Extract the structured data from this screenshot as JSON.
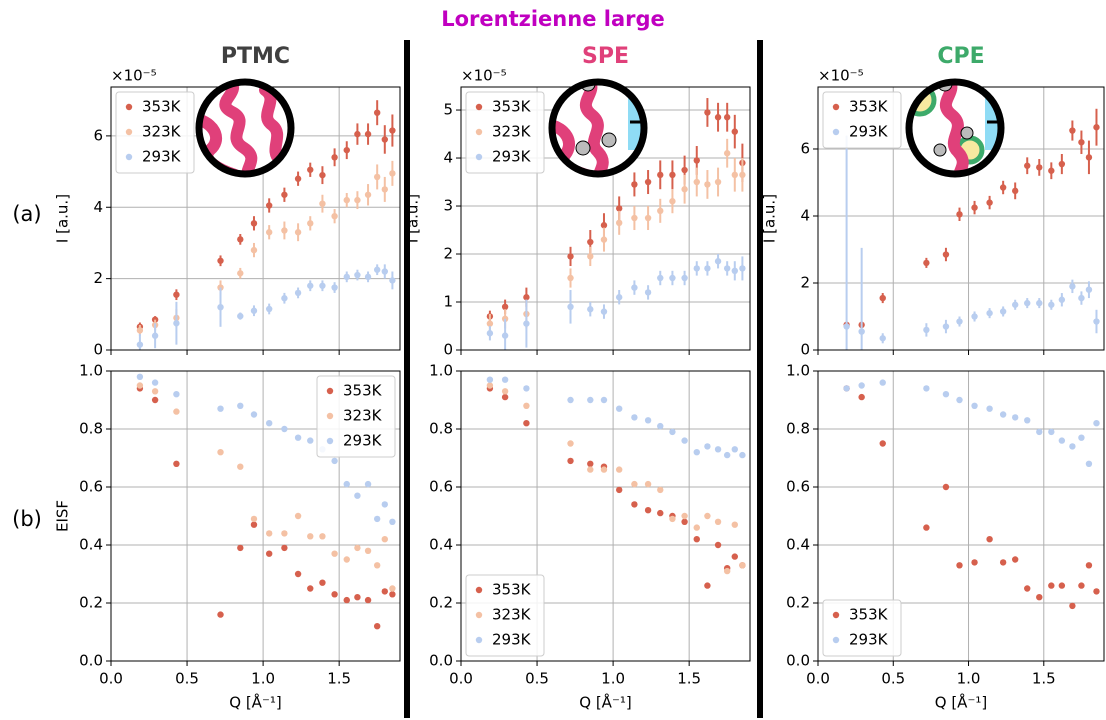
{
  "suptitle": "Lorentzienne large",
  "row_labels": [
    "(a)",
    "(b)"
  ],
  "chart_data": [
    {
      "type": "errorbar",
      "title": "PTMC",
      "title_color": "#404040",
      "y_label": "I [a.u.]",
      "offset_label": "×10⁻⁵",
      "x": [
        0.19,
        0.29,
        0.43,
        0.72,
        0.85,
        0.94,
        1.04,
        1.14,
        1.23,
        1.31,
        1.39,
        1.47,
        1.55,
        1.62,
        1.69,
        1.75,
        1.8,
        1.85
      ],
      "series": [
        {
          "name": "353K",
          "color": "#d6604d",
          "values": [
            0.65,
            0.85,
            1.55,
            2.5,
            3.1,
            3.55,
            4.05,
            4.35,
            4.8,
            5.05,
            4.9,
            5.4,
            5.6,
            6.05,
            6.05,
            6.65,
            5.9,
            6.15
          ],
          "errors": [
            0.12,
            0.1,
            0.15,
            0.15,
            0.15,
            0.2,
            0.2,
            0.2,
            0.2,
            0.2,
            0.25,
            0.25,
            0.25,
            0.3,
            0.3,
            0.35,
            0.4,
            0.45
          ]
        },
        {
          "name": "323K",
          "color": "#f4c1a4",
          "values": [
            0.55,
            0.7,
            0.9,
            1.75,
            2.15,
            2.8,
            3.3,
            3.35,
            3.3,
            3.55,
            4.1,
            3.75,
            4.2,
            4.2,
            4.35,
            4.85,
            4.5,
            4.95
          ],
          "errors": [
            0.15,
            0.15,
            0.25,
            0.2,
            0.15,
            0.2,
            0.2,
            0.25,
            0.25,
            0.2,
            0.25,
            0.2,
            0.2,
            0.25,
            0.3,
            0.35,
            0.35,
            0.35
          ]
        },
        {
          "name": "293K",
          "color": "#b8cdef",
          "values": [
            0.15,
            0.4,
            0.75,
            1.2,
            0.95,
            1.1,
            1.15,
            1.45,
            1.6,
            1.8,
            1.8,
            1.75,
            2.05,
            2.1,
            2.05,
            2.25,
            2.2,
            1.95
          ],
          "errors": [
            0.3,
            0.35,
            0.6,
            0.55,
            0.1,
            0.15,
            0.15,
            0.15,
            0.15,
            0.15,
            0.15,
            0.15,
            0.15,
            0.15,
            0.15,
            0.15,
            0.2,
            0.25
          ]
        }
      ],
      "xlim": [
        0,
        1.9
      ],
      "xticks": [
        {
          "value": 0,
          "label": "0.0"
        },
        0.5,
        {
          "value": 1,
          "label": "1.0"
        },
        1.5
      ],
      "ylim": [
        0,
        7.37
      ],
      "yticks": [
        0,
        2,
        4,
        6
      ],
      "grid": true,
      "legend": "upper left"
    },
    {
      "type": "scatter",
      "y_label": "EISF",
      "x_label": "Q [Å⁻¹]",
      "x": [
        0.19,
        0.29,
        0.43,
        0.72,
        0.85,
        0.94,
        1.04,
        1.14,
        1.23,
        1.31,
        1.39,
        1.47,
        1.55,
        1.62,
        1.69,
        1.75,
        1.8,
        1.85
      ],
      "series": [
        {
          "name": "353K",
          "color": "#d6604d",
          "values": [
            0.94,
            0.9,
            0.68,
            0.16,
            0.39,
            0.47,
            0.37,
            0.39,
            0.3,
            0.25,
            0.27,
            0.23,
            0.21,
            0.22,
            0.21,
            0.12,
            0.24,
            0.23
          ]
        },
        {
          "name": "323K",
          "color": "#f4c1a4",
          "values": [
            0.95,
            0.93,
            0.86,
            0.72,
            0.67,
            0.49,
            0.44,
            0.44,
            0.5,
            0.43,
            0.43,
            0.37,
            0.35,
            0.39,
            0.38,
            0.33,
            0.42,
            0.25
          ]
        },
        {
          "name": "293K",
          "color": "#b8cdef",
          "values": [
            0.98,
            0.96,
            0.92,
            0.87,
            0.88,
            0.85,
            0.82,
            0.8,
            0.77,
            0.76,
            0.73,
            0.69,
            0.61,
            0.57,
            0.61,
            0.49,
            0.54,
            0.48
          ]
        }
      ],
      "xlim": [
        0,
        1.9
      ],
      "xticks": [
        {
          "value": 0,
          "label": "0.0"
        },
        0.5,
        {
          "value": 1,
          "label": "1.0"
        },
        1.5
      ],
      "ylim": [
        0,
        1
      ],
      "yticks": [
        {
          "value": 0,
          "label": "0.0"
        },
        0.2,
        0.4,
        0.6,
        0.8,
        {
          "value": 1,
          "label": "1.0"
        }
      ],
      "grid": true,
      "legend": "upper right"
    },
    {
      "type": "errorbar",
      "title": "SPE",
      "title_color": "#e0407a",
      "y_label": "I [a.u.]",
      "offset_label": "×10⁻⁵",
      "x": [
        0.19,
        0.29,
        0.43,
        0.72,
        0.85,
        0.94,
        1.04,
        1.14,
        1.23,
        1.31,
        1.39,
        1.47,
        1.55,
        1.62,
        1.69,
        1.75,
        1.8,
        1.85
      ],
      "series": [
        {
          "name": "353K",
          "color": "#d6604d",
          "values": [
            0.7,
            0.9,
            1.1,
            1.95,
            2.25,
            2.6,
            2.95,
            3.45,
            3.5,
            3.65,
            3.65,
            3.75,
            3.95,
            4.95,
            4.85,
            4.85,
            4.55,
            3.9
          ],
          "errors": [
            0.12,
            0.15,
            0.2,
            0.2,
            0.25,
            0.25,
            0.25,
            0.25,
            0.25,
            0.3,
            0.3,
            0.3,
            0.3,
            0.3,
            0.3,
            0.3,
            0.35,
            0.4
          ]
        },
        {
          "name": "323K",
          "color": "#f4c1a4",
          "values": [
            0.55,
            0.65,
            0.75,
            1.5,
            1.95,
            2.3,
            2.65,
            2.75,
            2.75,
            2.9,
            3.1,
            3.35,
            3.5,
            3.45,
            3.5,
            4.1,
            3.65,
            3.65
          ],
          "errors": [
            0.2,
            0.2,
            0.3,
            0.2,
            0.2,
            0.25,
            0.25,
            0.25,
            0.25,
            0.25,
            0.25,
            0.3,
            0.3,
            0.3,
            0.3,
            0.3,
            0.35,
            0.35
          ]
        },
        {
          "name": "293K",
          "color": "#b8cdef",
          "values": [
            0.35,
            0.3,
            0.55,
            0.9,
            0.85,
            0.8,
            1.1,
            1.3,
            1.2,
            1.5,
            1.5,
            1.5,
            1.7,
            1.7,
            1.85,
            1.7,
            1.65,
            1.7
          ],
          "errors": [
            0.15,
            0.35,
            0.5,
            0.35,
            0.15,
            0.15,
            0.15,
            0.15,
            0.15,
            0.15,
            0.15,
            0.15,
            0.15,
            0.15,
            0.15,
            0.15,
            0.2,
            0.25
          ]
        }
      ],
      "xlim": [
        0,
        1.9
      ],
      "xticks": [
        {
          "value": 0,
          "label": "0.0"
        },
        0.5,
        {
          "value": 1,
          "label": "1.0"
        },
        1.5
      ],
      "ylim": [
        0,
        5.48
      ],
      "yticks": [
        0,
        1,
        2,
        3,
        4,
        5
      ],
      "grid": true,
      "legend": "upper left"
    },
    {
      "type": "scatter",
      "x_label": "Q [Å⁻¹]",
      "x": [
        0.19,
        0.29,
        0.43,
        0.72,
        0.85,
        0.94,
        1.04,
        1.14,
        1.23,
        1.31,
        1.39,
        1.47,
        1.55,
        1.62,
        1.69,
        1.75,
        1.8,
        1.85
      ],
      "series": [
        {
          "name": "353K",
          "color": "#d6604d",
          "values": [
            0.94,
            0.91,
            0.82,
            0.69,
            0.68,
            0.67,
            0.59,
            0.54,
            0.52,
            0.51,
            0.5,
            0.48,
            0.42,
            0.26,
            0.4,
            0.32,
            0.36,
            0.33
          ]
        },
        {
          "name": "323K",
          "color": "#f4c1a4",
          "values": [
            0.95,
            0.93,
            0.88,
            0.75,
            0.66,
            0.66,
            0.66,
            0.61,
            0.61,
            0.59,
            0.49,
            0.5,
            0.46,
            0.5,
            0.48,
            0.31,
            0.47,
            0.33
          ]
        },
        {
          "name": "293K",
          "color": "#b8cdef",
          "values": [
            0.97,
            0.97,
            0.94,
            0.9,
            0.9,
            0.9,
            0.87,
            0.84,
            0.83,
            0.81,
            0.79,
            0.76,
            0.72,
            0.74,
            0.73,
            0.71,
            0.73,
            0.71
          ]
        }
      ],
      "xlim": [
        0,
        1.9
      ],
      "xticks": [
        {
          "value": 0,
          "label": "0.0"
        },
        0.5,
        {
          "value": 1,
          "label": "1.0"
        },
        1.5
      ],
      "ylim": [
        0,
        1
      ],
      "yticks": [
        {
          "value": 0,
          "label": "0.0"
        },
        0.2,
        0.4,
        0.6,
        0.8,
        {
          "value": 1,
          "label": "1.0"
        }
      ],
      "grid": true,
      "legend": "lower left"
    },
    {
      "type": "errorbar",
      "title": "CPE",
      "title_color": "#3daa6a",
      "y_label": "I [a.u.]",
      "offset_label": "×10⁻⁵",
      "x": [
        0.19,
        0.29,
        0.43,
        0.72,
        0.85,
        0.94,
        1.04,
        1.14,
        1.23,
        1.31,
        1.39,
        1.47,
        1.55,
        1.62,
        1.69,
        1.75,
        1.8,
        1.85
      ],
      "series": [
        {
          "name": "353K",
          "color": "#d6604d",
          "values": [
            0.75,
            0.75,
            1.55,
            2.6,
            2.85,
            4.05,
            4.25,
            4.4,
            4.85,
            4.75,
            5.5,
            5.45,
            5.35,
            5.55,
            6.55,
            6.2,
            5.75,
            6.65
          ],
          "errors": [
            0.1,
            0.1,
            0.15,
            0.15,
            0.2,
            0.2,
            0.2,
            0.2,
            0.2,
            0.25,
            0.25,
            0.25,
            0.25,
            0.3,
            0.3,
            0.35,
            0.5,
            0.55
          ]
        },
        {
          "name": "293K",
          "color": "#b8cdef",
          "values": [
            0.7,
            0.55,
            0.35,
            0.6,
            0.7,
            0.85,
            1.0,
            1.1,
            1.15,
            1.35,
            1.4,
            1.4,
            1.35,
            1.5,
            1.9,
            1.55,
            1.8,
            0.85
          ],
          "errors": [
            5.7,
            2.5,
            0.15,
            0.2,
            0.2,
            0.15,
            0.15,
            0.15,
            0.15,
            0.15,
            0.15,
            0.15,
            0.15,
            0.2,
            0.2,
            0.2,
            0.25,
            0.35
          ]
        }
      ],
      "xlim": [
        0,
        1.9
      ],
      "xticks": [
        {
          "value": 0,
          "label": "0.0"
        },
        0.5,
        {
          "value": 1,
          "label": "1.0"
        },
        1.5
      ],
      "ylim": [
        0,
        7.85
      ],
      "yticks": [
        0,
        2,
        4,
        6
      ],
      "grid": true,
      "legend": "upper left"
    },
    {
      "type": "scatter",
      "x_label": "Q [Å⁻¹]",
      "x": [
        0.19,
        0.29,
        0.43,
        0.72,
        0.85,
        0.94,
        1.04,
        1.14,
        1.23,
        1.31,
        1.39,
        1.47,
        1.55,
        1.62,
        1.69,
        1.75,
        1.8,
        1.85
      ],
      "series": [
        {
          "name": "353K",
          "color": "#d6604d",
          "values": [
            0.94,
            0.91,
            0.75,
            0.46,
            0.6,
            0.33,
            0.34,
            0.42,
            0.34,
            0.35,
            0.25,
            0.22,
            0.26,
            0.26,
            0.19,
            0.26,
            0.33,
            0.24
          ]
        },
        {
          "name": "293K",
          "color": "#b8cdef",
          "values": [
            0.94,
            0.95,
            0.96,
            0.94,
            0.92,
            0.9,
            0.88,
            0.87,
            0.85,
            0.84,
            0.83,
            0.79,
            0.79,
            0.76,
            0.74,
            0.77,
            0.68,
            0.82
          ]
        }
      ],
      "xlim": [
        0,
        1.9
      ],
      "xticks": [
        {
          "value": 0,
          "label": "0.0"
        },
        0.5,
        {
          "value": 1,
          "label": "1.0"
        },
        1.5
      ],
      "ylim": [
        0,
        1
      ],
      "yticks": [
        {
          "value": 0,
          "label": "0.0"
        },
        0.2,
        0.4,
        0.6,
        0.8,
        {
          "value": 1,
          "label": "1.0"
        }
      ],
      "grid": true,
      "legend": "lower left"
    }
  ]
}
